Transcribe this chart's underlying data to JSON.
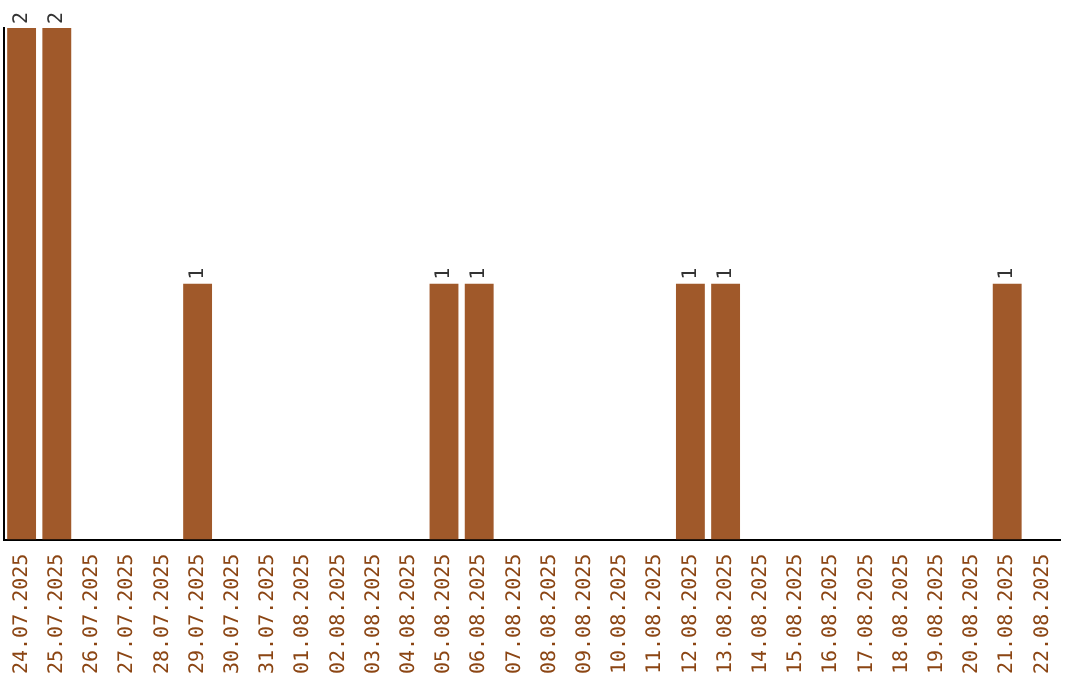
{
  "chart_data": {
    "type": "bar",
    "categories": [
      "24.07.2025",
      "25.07.2025",
      "26.07.2025",
      "27.07.2025",
      "28.07.2025",
      "29.07.2025",
      "30.07.2025",
      "31.07.2025",
      "01.08.2025",
      "02.08.2025",
      "03.08.2025",
      "04.08.2025",
      "05.08.2025",
      "06.08.2025",
      "07.08.2025",
      "08.08.2025",
      "09.08.2025",
      "10.08.2025",
      "11.08.2025",
      "12.08.2025",
      "13.08.2025",
      "14.08.2025",
      "15.08.2025",
      "16.08.2025",
      "17.08.2025",
      "18.08.2025",
      "19.08.2025",
      "20.08.2025",
      "21.08.2025",
      "22.08.2025"
    ],
    "values": [
      2,
      2,
      0,
      0,
      0,
      1,
      0,
      0,
      0,
      0,
      0,
      0,
      1,
      1,
      0,
      0,
      0,
      0,
      0,
      1,
      1,
      0,
      0,
      0,
      0,
      0,
      0,
      0,
      1,
      0
    ],
    "value_labels": [
      "2",
      "2",
      null,
      null,
      null,
      "1",
      null,
      null,
      null,
      null,
      null,
      null,
      "1",
      "1",
      null,
      null,
      null,
      null,
      null,
      "1",
      "1",
      null,
      null,
      null,
      null,
      null,
      null,
      null,
      "1",
      null
    ],
    "color": "#a0592a",
    "grid": false,
    "legend": false
  }
}
